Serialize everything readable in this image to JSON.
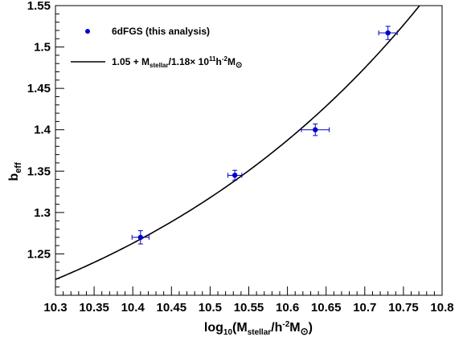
{
  "chart_data": {
    "type": "scatter",
    "x_axis": {
      "range": [
        10.3,
        10.8
      ],
      "ticks": [
        10.3,
        10.35,
        10.4,
        10.45,
        10.5,
        10.55,
        10.6,
        10.65,
        10.7,
        10.75,
        10.8
      ],
      "tick_labels": [
        "10.3",
        "10.35",
        "10.4",
        "10.45",
        "10.5",
        "10.55",
        "10.6",
        "10.65",
        "10.7",
        "10.75",
        "10.8"
      ],
      "label": {
        "prefix": "log",
        "sub1": "10",
        "mid": "(M",
        "sub2": "stellar",
        "mid2": "/h",
        "sup": "-2",
        "end": "M",
        "sub3": "⊙",
        "close": ")"
      }
    },
    "y_axis": {
      "range": [
        1.2,
        1.55
      ],
      "ticks": [
        1.25,
        1.3,
        1.35,
        1.4,
        1.45,
        1.5,
        1.55
      ],
      "tick_labels": [
        "1.25",
        "1.3",
        "1.35",
        "1.4",
        "1.45",
        "1.5",
        "1.55"
      ],
      "label": {
        "main": "b",
        "sub": "eff"
      }
    },
    "series": [
      {
        "name": "6dFGS (this analysis)",
        "color": "#0000cc",
        "points": [
          {
            "x": 10.41,
            "y": 1.27,
            "xerr": 0.011,
            "yerr": 0.008
          },
          {
            "x": 10.532,
            "y": 1.345,
            "xerr": 0.009,
            "yerr": 0.006
          },
          {
            "x": 10.636,
            "y": 1.4,
            "xerr": 0.018,
            "yerr": 0.007
          },
          {
            "x": 10.73,
            "y": 1.517,
            "xerr": 0.012,
            "yerr": 0.008
          }
        ]
      }
    ],
    "fit": {
      "label": {
        "a": "1.05 + M",
        "sub1": "stellar",
        "b": "/1.18× 10",
        "sup1": "11",
        "c": "h",
        "sup2": "-2",
        "d": "M",
        "sub2": "⊙"
      },
      "offset": 1.05,
      "mass_scale_log10": 11.0719,
      "color": "#000000"
    },
    "legend": {
      "position": "top-left"
    },
    "grid": false
  }
}
